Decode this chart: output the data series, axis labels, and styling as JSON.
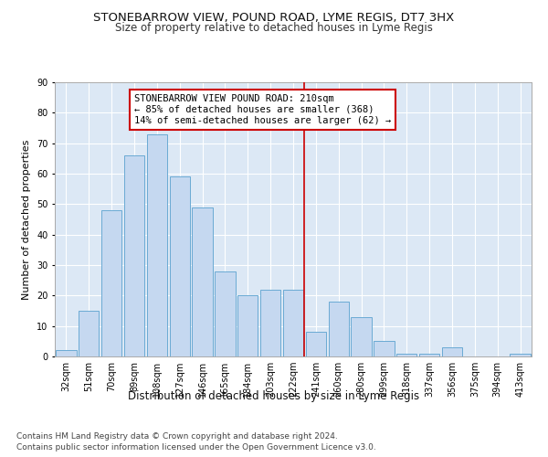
{
  "title1": "STONEBARROW VIEW, POUND ROAD, LYME REGIS, DT7 3HX",
  "title2": "Size of property relative to detached houses in Lyme Regis",
  "xlabel": "Distribution of detached houses by size in Lyme Regis",
  "ylabel": "Number of detached properties",
  "categories": [
    "32sqm",
    "51sqm",
    "70sqm",
    "89sqm",
    "108sqm",
    "127sqm",
    "146sqm",
    "165sqm",
    "184sqm",
    "203sqm",
    "222sqm",
    "241sqm",
    "260sqm",
    "280sqm",
    "299sqm",
    "318sqm",
    "337sqm",
    "356sqm",
    "375sqm",
    "394sqm",
    "413sqm"
  ],
  "values": [
    2,
    15,
    48,
    66,
    73,
    59,
    49,
    28,
    20,
    22,
    22,
    8,
    18,
    13,
    5,
    1,
    1,
    3,
    0,
    0,
    1
  ],
  "bar_color": "#c5d8f0",
  "bar_edge_color": "#6aaad4",
  "background_color": "#dce8f5",
  "grid_color": "#ffffff",
  "vline_x": 10.5,
  "vline_color": "#cc0000",
  "annotation_text": "STONEBARROW VIEW POUND ROAD: 210sqm\n← 85% of detached houses are smaller (368)\n14% of semi-detached houses are larger (62) →",
  "annotation_box_color": "#ffffff",
  "annotation_box_edge_color": "#cc0000",
  "ylim": [
    0,
    90
  ],
  "yticks": [
    0,
    10,
    20,
    30,
    40,
    50,
    60,
    70,
    80,
    90
  ],
  "footer1": "Contains HM Land Registry data © Crown copyright and database right 2024.",
  "footer2": "Contains public sector information licensed under the Open Government Licence v3.0.",
  "title1_fontsize": 9.5,
  "title2_fontsize": 8.5,
  "tick_fontsize": 7,
  "ylabel_fontsize": 8,
  "xlabel_fontsize": 8.5,
  "annotation_fontsize": 7.5,
  "footer_fontsize": 6.5
}
